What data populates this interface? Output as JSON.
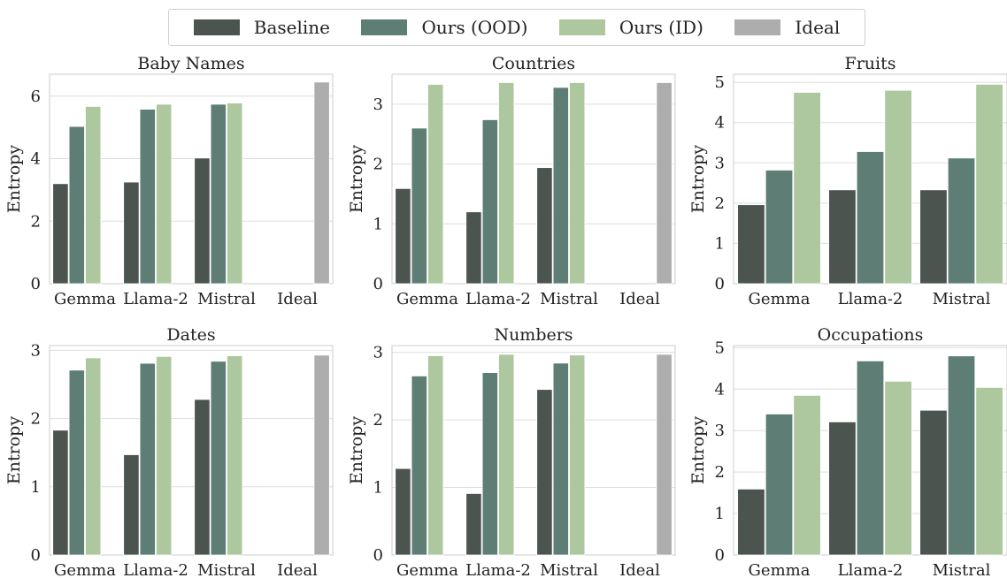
{
  "legend": {
    "items": [
      {
        "label": "Baseline",
        "color": "#4b544e"
      },
      {
        "label": "Ours (OOD)",
        "color": "#5e7d75"
      },
      {
        "label": "Ours (ID)",
        "color": "#adc79f"
      },
      {
        "label": "Ideal",
        "color": "#adadad"
      }
    ]
  },
  "chart_data": [
    {
      "type": "bar",
      "title": "Baby Names",
      "ylabel": "Entropy",
      "categories": [
        "Gemma",
        "Llama-2",
        "Mistral",
        "Ideal"
      ],
      "ylim": [
        0,
        6.7
      ],
      "yticks": [
        0,
        2,
        4,
        6
      ],
      "series": [
        {
          "name": "Baseline",
          "values": [
            3.2,
            3.25,
            4.02,
            null
          ]
        },
        {
          "name": "Ours (OOD)",
          "values": [
            5.03,
            5.58,
            5.74,
            null
          ]
        },
        {
          "name": "Ours (ID)",
          "values": [
            5.67,
            5.74,
            5.78,
            null
          ]
        },
        {
          "name": "Ideal",
          "values": [
            null,
            null,
            null,
            6.45
          ]
        }
      ]
    },
    {
      "type": "bar",
      "title": "Countries",
      "ylabel": "Entropy",
      "categories": [
        "Gemma",
        "Llama-2",
        "Mistral",
        "Ideal"
      ],
      "ylim": [
        0,
        3.5
      ],
      "yticks": [
        0,
        1,
        2,
        3
      ],
      "series": [
        {
          "name": "Baseline",
          "values": [
            1.59,
            1.2,
            1.94,
            null
          ]
        },
        {
          "name": "Ours (OOD)",
          "values": [
            2.6,
            2.74,
            3.28,
            null
          ]
        },
        {
          "name": "Ours (ID)",
          "values": [
            3.33,
            3.36,
            3.36,
            null
          ]
        },
        {
          "name": "Ideal",
          "values": [
            null,
            null,
            null,
            3.36
          ]
        }
      ]
    },
    {
      "type": "bar",
      "title": "Fruits",
      "ylabel": "Entropy",
      "categories": [
        "Gemma",
        "Llama-2",
        "Mistral"
      ],
      "ylim": [
        0,
        5.2
      ],
      "yticks": [
        0,
        1,
        2,
        3,
        4,
        5
      ],
      "series": [
        {
          "name": "Baseline",
          "values": [
            1.96,
            2.33,
            2.33
          ]
        },
        {
          "name": "Ours (OOD)",
          "values": [
            2.82,
            3.28,
            3.12
          ]
        },
        {
          "name": "Ours (ID)",
          "values": [
            4.75,
            4.8,
            4.95
          ]
        }
      ]
    },
    {
      "type": "bar",
      "title": "Dates",
      "ylabel": "Entropy",
      "categories": [
        "Gemma",
        "Llama-2",
        "Mistral",
        "Ideal"
      ],
      "ylim": [
        0,
        3.07
      ],
      "yticks": [
        0,
        1,
        2,
        3
      ],
      "series": [
        {
          "name": "Baseline",
          "values": [
            1.83,
            1.47,
            2.28,
            null
          ]
        },
        {
          "name": "Ours (OOD)",
          "values": [
            2.71,
            2.81,
            2.84,
            null
          ]
        },
        {
          "name": "Ours (ID)",
          "values": [
            2.89,
            2.91,
            2.92,
            null
          ]
        },
        {
          "name": "Ideal",
          "values": [
            null,
            null,
            null,
            2.93
          ]
        }
      ]
    },
    {
      "type": "bar",
      "title": "Numbers",
      "ylabel": "Entropy",
      "categories": [
        "Gemma",
        "Llama-2",
        "Mistral",
        "Ideal"
      ],
      "ylim": [
        0,
        3.1
      ],
      "yticks": [
        0,
        1,
        2,
        3
      ],
      "series": [
        {
          "name": "Baseline",
          "values": [
            1.28,
            0.91,
            2.45,
            null
          ]
        },
        {
          "name": "Ours (OOD)",
          "values": [
            2.65,
            2.7,
            2.84,
            null
          ]
        },
        {
          "name": "Ours (ID)",
          "values": [
            2.95,
            2.97,
            2.96,
            null
          ]
        },
        {
          "name": "Ideal",
          "values": [
            null,
            null,
            null,
            2.97
          ]
        }
      ]
    },
    {
      "type": "bar",
      "title": "Occupations",
      "ylabel": "Entropy",
      "categories": [
        "Gemma",
        "Llama-2",
        "Mistral"
      ],
      "ylim": [
        0,
        5.05
      ],
      "yticks": [
        0,
        1,
        2,
        3,
        4,
        5
      ],
      "series": [
        {
          "name": "Baseline",
          "values": [
            1.59,
            3.21,
            3.49
          ]
        },
        {
          "name": "Ours (OOD)",
          "values": [
            3.4,
            4.68,
            4.8
          ]
        },
        {
          "name": "Ours (ID)",
          "values": [
            3.85,
            4.19,
            4.04
          ]
        }
      ]
    }
  ]
}
